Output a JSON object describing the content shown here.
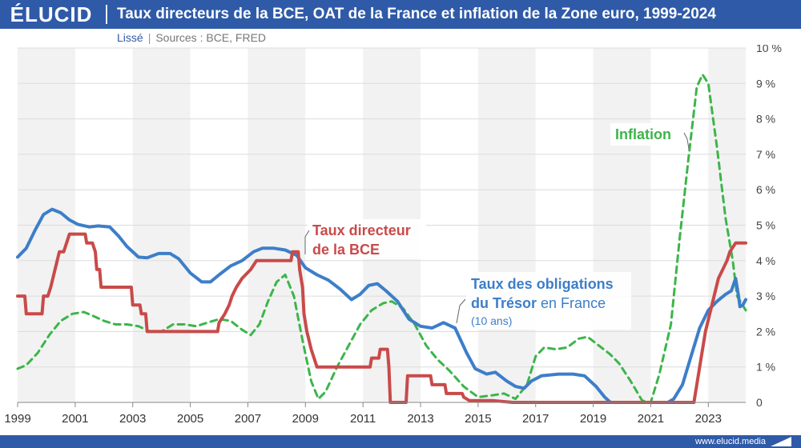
{
  "header": {
    "logo": "ÉLUCID",
    "title": "Taux directeurs de la BCE, OAT de la France et inflation de la Zone euro, 1999-2024"
  },
  "subtitle": {
    "mode": "Lissé",
    "sources": "Sources : BCE, FRED"
  },
  "footer": {
    "url": "www.elucid.media"
  },
  "colors": {
    "header": "#2f5aa8",
    "bce": "#c94a4a",
    "oat": "#3d7ec9",
    "inflation": "#3cb54a"
  },
  "chart_data": {
    "type": "line",
    "title": "Taux directeurs de la BCE, OAT de la France et inflation de la Zone euro, 1999-2024",
    "xlim": [
      1999,
      2024.3
    ],
    "ylim": [
      0,
      10
    ],
    "x_ticks": [
      "1999",
      "2001",
      "2003",
      "2005",
      "2007",
      "2009",
      "2011",
      "2013",
      "2015",
      "2017",
      "2019",
      "2021",
      "2023"
    ],
    "y_ticks": [
      "10 %",
      "9 %",
      "8 %",
      "7 %",
      "6 %",
      "5 %",
      "4 %",
      "3 %",
      "2 %",
      "1 %",
      "0"
    ],
    "grid": "horizontal",
    "annotations": {
      "bce": [
        "Taux directeur",
        "de la BCE"
      ],
      "oat": [
        "Taux des obligations",
        "du Trésor",
        "en France",
        "(10 ans)"
      ],
      "inflation": "Inflation"
    },
    "series": [
      {
        "name": "Taux directeur de la BCE",
        "style": "solid",
        "points": [
          [
            1999,
            3.0
          ],
          [
            1999.25,
            3.0
          ],
          [
            1999.3,
            2.5
          ],
          [
            1999.85,
            2.5
          ],
          [
            1999.9,
            3.0
          ],
          [
            2000.05,
            3.0
          ],
          [
            2000.15,
            3.25
          ],
          [
            2000.3,
            3.75
          ],
          [
            2000.45,
            4.25
          ],
          [
            2000.6,
            4.25
          ],
          [
            2000.7,
            4.5
          ],
          [
            2000.8,
            4.75
          ],
          [
            2001.35,
            4.75
          ],
          [
            2001.4,
            4.5
          ],
          [
            2001.6,
            4.5
          ],
          [
            2001.7,
            4.25
          ],
          [
            2001.75,
            3.75
          ],
          [
            2001.85,
            3.75
          ],
          [
            2001.9,
            3.25
          ],
          [
            2002.95,
            3.25
          ],
          [
            2003.0,
            2.75
          ],
          [
            2003.25,
            2.75
          ],
          [
            2003.3,
            2.5
          ],
          [
            2003.45,
            2.5
          ],
          [
            2003.5,
            2.0
          ],
          [
            2005.95,
            2.0
          ],
          [
            2006.0,
            2.25
          ],
          [
            2006.2,
            2.5
          ],
          [
            2006.35,
            2.75
          ],
          [
            2006.45,
            3.0
          ],
          [
            2006.6,
            3.25
          ],
          [
            2006.8,
            3.5
          ],
          [
            2007.1,
            3.75
          ],
          [
            2007.3,
            4.0
          ],
          [
            2008.5,
            4.0
          ],
          [
            2008.55,
            4.25
          ],
          [
            2008.75,
            4.25
          ],
          [
            2008.8,
            3.75
          ],
          [
            2008.9,
            3.25
          ],
          [
            2008.95,
            2.5
          ],
          [
            2009.05,
            2.0
          ],
          [
            2009.2,
            1.5
          ],
          [
            2009.3,
            1.25
          ],
          [
            2009.4,
            1.0
          ],
          [
            2011.25,
            1.0
          ],
          [
            2011.3,
            1.25
          ],
          [
            2011.55,
            1.25
          ],
          [
            2011.6,
            1.5
          ],
          [
            2011.85,
            1.5
          ],
          [
            2011.9,
            1.0
          ],
          [
            2011.95,
            0.0
          ],
          [
            2012.5,
            0.0
          ],
          [
            2012.55,
            0.75
          ],
          [
            2013.35,
            0.75
          ],
          [
            2013.4,
            0.5
          ],
          [
            2013.85,
            0.5
          ],
          [
            2013.9,
            0.25
          ],
          [
            2014.45,
            0.25
          ],
          [
            2014.5,
            0.15
          ],
          [
            2014.7,
            0.05
          ],
          [
            2015.0,
            0.05
          ],
          [
            2015.5,
            0.05
          ],
          [
            2016.2,
            0.0
          ],
          [
            2022.5,
            0.0
          ],
          [
            2022.6,
            0.5
          ],
          [
            2022.75,
            1.25
          ],
          [
            2022.9,
            2.0
          ],
          [
            2023.05,
            2.5
          ],
          [
            2023.2,
            3.0
          ],
          [
            2023.35,
            3.5
          ],
          [
            2023.5,
            3.75
          ],
          [
            2023.65,
            4.0
          ],
          [
            2023.75,
            4.25
          ],
          [
            2023.95,
            4.5
          ],
          [
            2024.3,
            4.5
          ]
        ]
      },
      {
        "name": "Taux des obligations du Trésor en France (10 ans)",
        "style": "solid",
        "points": [
          [
            1999,
            4.1
          ],
          [
            1999.3,
            4.35
          ],
          [
            1999.6,
            4.85
          ],
          [
            1999.9,
            5.3
          ],
          [
            2000.2,
            5.45
          ],
          [
            2000.5,
            5.35
          ],
          [
            2000.8,
            5.15
          ],
          [
            2001.1,
            5.02
          ],
          [
            2001.5,
            4.95
          ],
          [
            2001.8,
            4.98
          ],
          [
            2002.2,
            4.95
          ],
          [
            2002.5,
            4.7
          ],
          [
            2002.8,
            4.4
          ],
          [
            2003.2,
            4.1
          ],
          [
            2003.5,
            4.08
          ],
          [
            2003.9,
            4.2
          ],
          [
            2004.3,
            4.2
          ],
          [
            2004.6,
            4.05
          ],
          [
            2005.0,
            3.65
          ],
          [
            2005.4,
            3.4
          ],
          [
            2005.7,
            3.4
          ],
          [
            2006.0,
            3.6
          ],
          [
            2006.4,
            3.85
          ],
          [
            2006.8,
            4.0
          ],
          [
            2007.2,
            4.25
          ],
          [
            2007.5,
            4.35
          ],
          [
            2007.9,
            4.35
          ],
          [
            2008.3,
            4.3
          ],
          [
            2008.7,
            4.15
          ],
          [
            2009.0,
            3.8
          ],
          [
            2009.4,
            3.6
          ],
          [
            2009.8,
            3.45
          ],
          [
            2010.2,
            3.2
          ],
          [
            2010.6,
            2.9
          ],
          [
            2010.9,
            3.05
          ],
          [
            2011.2,
            3.3
          ],
          [
            2011.5,
            3.35
          ],
          [
            2011.8,
            3.15
          ],
          [
            2012.2,
            2.85
          ],
          [
            2012.6,
            2.35
          ],
          [
            2013.0,
            2.15
          ],
          [
            2013.4,
            2.1
          ],
          [
            2013.8,
            2.25
          ],
          [
            2014.2,
            2.1
          ],
          [
            2014.6,
            1.4
          ],
          [
            2014.9,
            0.95
          ],
          [
            2015.3,
            0.8
          ],
          [
            2015.6,
            0.85
          ],
          [
            2016.0,
            0.6
          ],
          [
            2016.3,
            0.45
          ],
          [
            2016.6,
            0.4
          ],
          [
            2016.85,
            0.6
          ],
          [
            2017.2,
            0.75
          ],
          [
            2017.8,
            0.8
          ],
          [
            2018.3,
            0.8
          ],
          [
            2018.7,
            0.75
          ],
          [
            2019.1,
            0.45
          ],
          [
            2019.4,
            0.15
          ],
          [
            2019.6,
            0.0
          ],
          [
            2021.6,
            0.0
          ],
          [
            2021.8,
            0.1
          ],
          [
            2022.1,
            0.5
          ],
          [
            2022.4,
            1.3
          ],
          [
            2022.7,
            2.1
          ],
          [
            2023.0,
            2.6
          ],
          [
            2023.3,
            2.85
          ],
          [
            2023.6,
            3.05
          ],
          [
            2023.8,
            3.15
          ],
          [
            2023.95,
            3.5
          ],
          [
            2024.05,
            3.0
          ],
          [
            2024.1,
            2.7
          ],
          [
            2024.2,
            2.75
          ],
          [
            2024.3,
            2.9
          ]
        ]
      },
      {
        "name": "Inflation",
        "style": "dashed",
        "points": [
          [
            1999,
            0.95
          ],
          [
            1999.3,
            1.05
          ],
          [
            1999.7,
            1.4
          ],
          [
            2000.1,
            1.9
          ],
          [
            2000.5,
            2.3
          ],
          [
            2000.9,
            2.5
          ],
          [
            2001.3,
            2.55
          ],
          [
            2001.6,
            2.45
          ],
          [
            2002.0,
            2.3
          ],
          [
            2002.4,
            2.2
          ],
          [
            2002.8,
            2.2
          ],
          [
            2003.2,
            2.15
          ],
          [
            2003.6,
            2.0
          ],
          [
            2004.0,
            2.0
          ],
          [
            2004.4,
            2.2
          ],
          [
            2004.8,
            2.2
          ],
          [
            2005.2,
            2.15
          ],
          [
            2005.6,
            2.25
          ],
          [
            2006.0,
            2.35
          ],
          [
            2006.4,
            2.3
          ],
          [
            2006.8,
            2.05
          ],
          [
            2007.1,
            1.9
          ],
          [
            2007.4,
            2.2
          ],
          [
            2007.7,
            2.85
          ],
          [
            2008.0,
            3.4
          ],
          [
            2008.3,
            3.6
          ],
          [
            2008.6,
            3.0
          ],
          [
            2008.9,
            1.75
          ],
          [
            2009.2,
            0.6
          ],
          [
            2009.45,
            0.1
          ],
          [
            2009.7,
            0.3
          ],
          [
            2010.1,
            1.0
          ],
          [
            2010.5,
            1.6
          ],
          [
            2010.9,
            2.2
          ],
          [
            2011.3,
            2.6
          ],
          [
            2011.7,
            2.8
          ],
          [
            2012.0,
            2.85
          ],
          [
            2012.4,
            2.65
          ],
          [
            2012.8,
            2.2
          ],
          [
            2013.2,
            1.6
          ],
          [
            2013.6,
            1.2
          ],
          [
            2014.0,
            0.9
          ],
          [
            2014.5,
            0.45
          ],
          [
            2015.0,
            0.15
          ],
          [
            2015.5,
            0.2
          ],
          [
            2015.9,
            0.25
          ],
          [
            2016.3,
            0.1
          ],
          [
            2016.7,
            0.5
          ],
          [
            2017.0,
            1.3
          ],
          [
            2017.3,
            1.55
          ],
          [
            2017.7,
            1.5
          ],
          [
            2018.1,
            1.55
          ],
          [
            2018.5,
            1.8
          ],
          [
            2018.8,
            1.85
          ],
          [
            2019.2,
            1.6
          ],
          [
            2019.6,
            1.35
          ],
          [
            2019.9,
            1.1
          ],
          [
            2020.3,
            0.6
          ],
          [
            2020.7,
            0.05
          ],
          [
            2021.0,
            0.0
          ],
          [
            2021.3,
            0.8
          ],
          [
            2021.7,
            2.2
          ],
          [
            2022.0,
            4.6
          ],
          [
            2022.3,
            6.8
          ],
          [
            2022.6,
            8.9
          ],
          [
            2022.8,
            9.25
          ],
          [
            2023.0,
            9.0
          ],
          [
            2023.3,
            7.2
          ],
          [
            2023.6,
            5.2
          ],
          [
            2023.85,
            4.0
          ],
          [
            2024.0,
            3.0
          ],
          [
            2024.3,
            2.6
          ]
        ]
      }
    ]
  }
}
